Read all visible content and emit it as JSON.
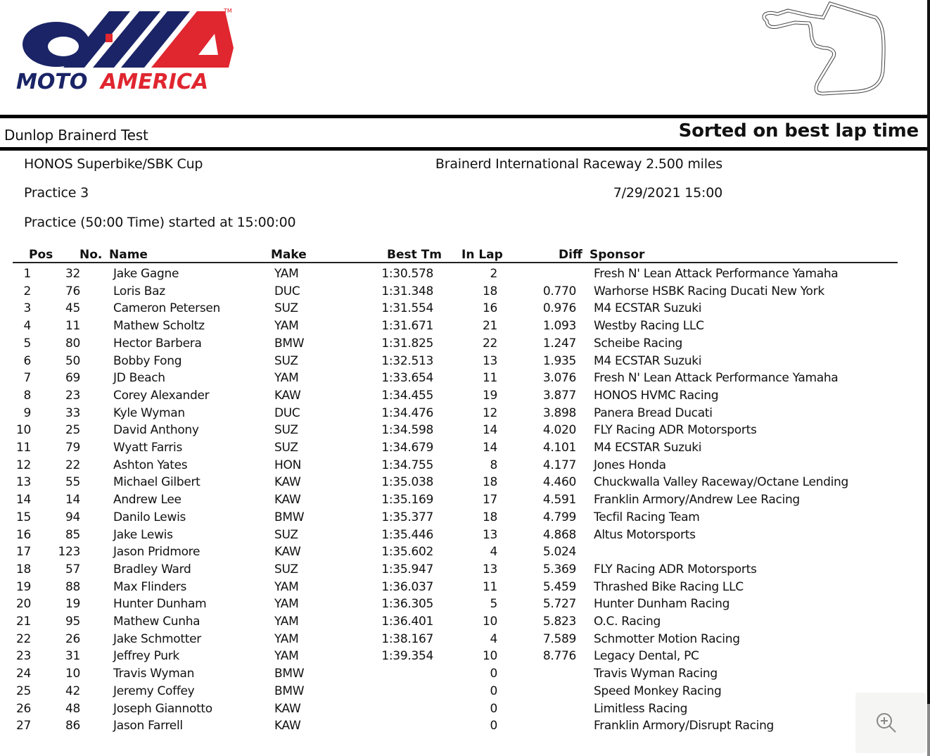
{
  "logo": {
    "text": "MOTOAMERICA",
    "trademark": "TM",
    "colors": {
      "navy": "#1a2466",
      "red": "#e0262f"
    }
  },
  "track_map": {
    "icon": "track-map-icon"
  },
  "header": {
    "event": "Dunlop Brainerd Test",
    "sort_label": "Sorted on best lap time",
    "class": "HONOS Superbike/SBK Cup",
    "venue": "Brainerd International Raceway 2.500 miles",
    "session": "Practice 3",
    "datetime": "7/29/2021 15:00",
    "session_info": "Practice (50:00 Time) started at 15:00:00"
  },
  "table": {
    "columns": [
      "Pos",
      "No.",
      "Name",
      "Make",
      "Best Tm",
      "In Lap",
      "Diff",
      "Sponsor"
    ],
    "rows": [
      [
        "1",
        "32",
        "Jake Gagne",
        "YAM",
        "1:30.578",
        "2",
        "",
        "Fresh N' Lean Attack Performance Yamaha"
      ],
      [
        "2",
        "76",
        "Loris Baz",
        "DUC",
        "1:31.348",
        "18",
        "0.770",
        "Warhorse HSBK Racing Ducati New York"
      ],
      [
        "3",
        "45",
        "Cameron Petersen",
        "SUZ",
        "1:31.554",
        "16",
        "0.976",
        "M4 ECSTAR Suzuki"
      ],
      [
        "4",
        "11",
        "Mathew Scholtz",
        "YAM",
        "1:31.671",
        "21",
        "1.093",
        "Westby Racing LLC"
      ],
      [
        "5",
        "80",
        "Hector Barbera",
        "BMW",
        "1:31.825",
        "22",
        "1.247",
        "Scheibe Racing"
      ],
      [
        "6",
        "50",
        "Bobby Fong",
        "SUZ",
        "1:32.513",
        "13",
        "1.935",
        "M4 ECSTAR Suzuki"
      ],
      [
        "7",
        "69",
        "JD Beach",
        "YAM",
        "1:33.654",
        "11",
        "3.076",
        "Fresh N' Lean Attack Performance Yamaha"
      ],
      [
        "8",
        "23",
        "Corey Alexander",
        "KAW",
        "1:34.455",
        "19",
        "3.877",
        "HONOS HVMC Racing"
      ],
      [
        "9",
        "33",
        "Kyle Wyman",
        "DUC",
        "1:34.476",
        "12",
        "3.898",
        "Panera Bread Ducati"
      ],
      [
        "10",
        "25",
        "David Anthony",
        "SUZ",
        "1:34.598",
        "14",
        "4.020",
        "FLY Racing ADR Motorsports"
      ],
      [
        "11",
        "79",
        "Wyatt Farris",
        "SUZ",
        "1:34.679",
        "14",
        "4.101",
        "M4 ECSTAR Suzuki"
      ],
      [
        "12",
        "22",
        "Ashton Yates",
        "HON",
        "1:34.755",
        "8",
        "4.177",
        "Jones Honda"
      ],
      [
        "13",
        "55",
        "Michael Gilbert",
        "KAW",
        "1:35.038",
        "18",
        "4.460",
        "Chuckwalla Valley Raceway/Octane Lending"
      ],
      [
        "14",
        "14",
        "Andrew Lee",
        "KAW",
        "1:35.169",
        "17",
        "4.591",
        "Franklin Armory/Andrew Lee Racing"
      ],
      [
        "15",
        "94",
        "Danilo Lewis",
        "BMW",
        "1:35.377",
        "18",
        "4.799",
        "Tecfil Racing Team"
      ],
      [
        "16",
        "85",
        "Jake Lewis",
        "SUZ",
        "1:35.446",
        "13",
        "4.868",
        "Altus Motorsports"
      ],
      [
        "17",
        "123",
        "Jason Pridmore",
        "KAW",
        "1:35.602",
        "4",
        "5.024",
        ""
      ],
      [
        "18",
        "57",
        "Bradley Ward",
        "SUZ",
        "1:35.947",
        "13",
        "5.369",
        "FLY Racing ADR Motorsports"
      ],
      [
        "19",
        "88",
        "Max Flinders",
        "YAM",
        "1:36.037",
        "11",
        "5.459",
        "Thrashed Bike Racing LLC"
      ],
      [
        "20",
        "19",
        "Hunter Dunham",
        "YAM",
        "1:36.305",
        "5",
        "5.727",
        "Hunter Dunham Racing"
      ],
      [
        "21",
        "95",
        "Mathew Cunha",
        "YAM",
        "1:36.401",
        "10",
        "5.823",
        "O.C. Racing"
      ],
      [
        "22",
        "26",
        "Jake Schmotter",
        "YAM",
        "1:38.167",
        "4",
        "7.589",
        "Schmotter Motion Racing"
      ],
      [
        "23",
        "31",
        "Jeffrey Purk",
        "YAM",
        "1:39.354",
        "10",
        "8.776",
        "Legacy Dental, PC"
      ],
      [
        "24",
        "10",
        "Travis Wyman",
        "BMW",
        "",
        "0",
        "",
        "Travis Wyman Racing"
      ],
      [
        "25",
        "42",
        "Jeremy Coffey",
        "BMW",
        "",
        "0",
        "",
        "Speed Monkey Racing"
      ],
      [
        "26",
        "48",
        "Joseph Giannotto",
        "KAW",
        "",
        "0",
        "",
        "Limitless Racing"
      ],
      [
        "27",
        "86",
        "Jason Farrell",
        "KAW",
        "",
        "0",
        "",
        "Franklin Armory/Disrupt Racing"
      ]
    ]
  },
  "viewer": {
    "zoom_icon": "zoom-in-icon"
  }
}
